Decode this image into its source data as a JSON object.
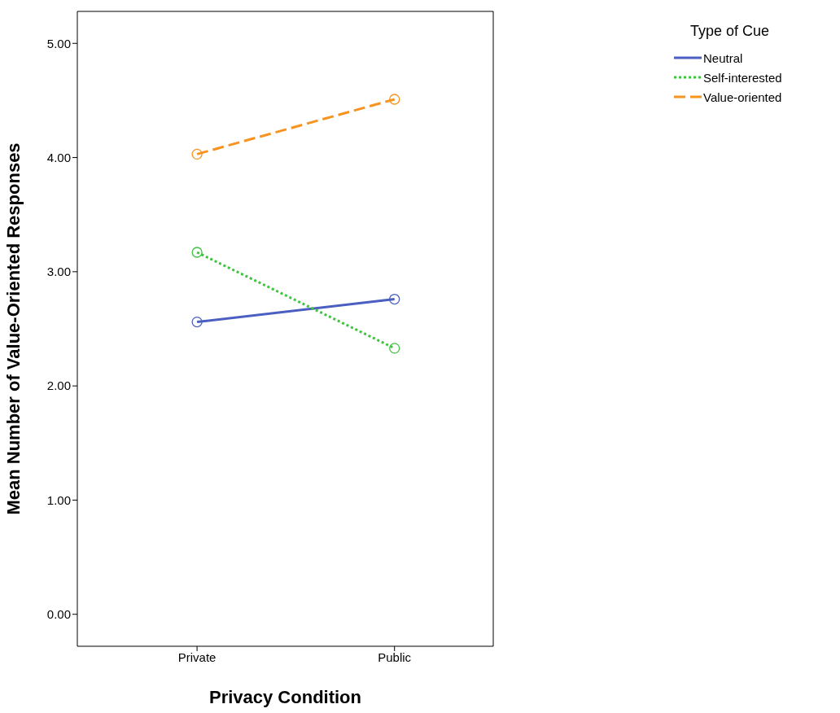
{
  "chart_data": {
    "type": "line",
    "xlabel": "Privacy Condition",
    "ylabel": "Mean Number of Value-Oriented Responses",
    "legend_title": "Type of Cue",
    "legend": "top right",
    "marker": "circle",
    "categories": [
      "Private",
      "Public"
    ],
    "ylim": [
      -0.28,
      5.28
    ],
    "yticks": [
      {
        "value": 0,
        "label": "0.00"
      },
      {
        "value": 1,
        "label": "1.00"
      },
      {
        "value": 2,
        "label": "2.00"
      },
      {
        "value": 3,
        "label": "3.00"
      },
      {
        "value": 4,
        "label": "4.00"
      },
      {
        "value": 5,
        "label": "5.00"
      }
    ],
    "series": [
      {
        "name": "Neutral",
        "color": "#4a5fc1",
        "line_style": "solid",
        "values": [
          2.56,
          2.76
        ]
      },
      {
        "name": "Self-interested",
        "color": "#3ec43e",
        "line_style": "dotted",
        "values": [
          3.17,
          2.33
        ]
      },
      {
        "name": "Value-oriented",
        "color": "#f7931e",
        "line_style": "dashed",
        "values": [
          4.03,
          4.51
        ]
      }
    ]
  }
}
